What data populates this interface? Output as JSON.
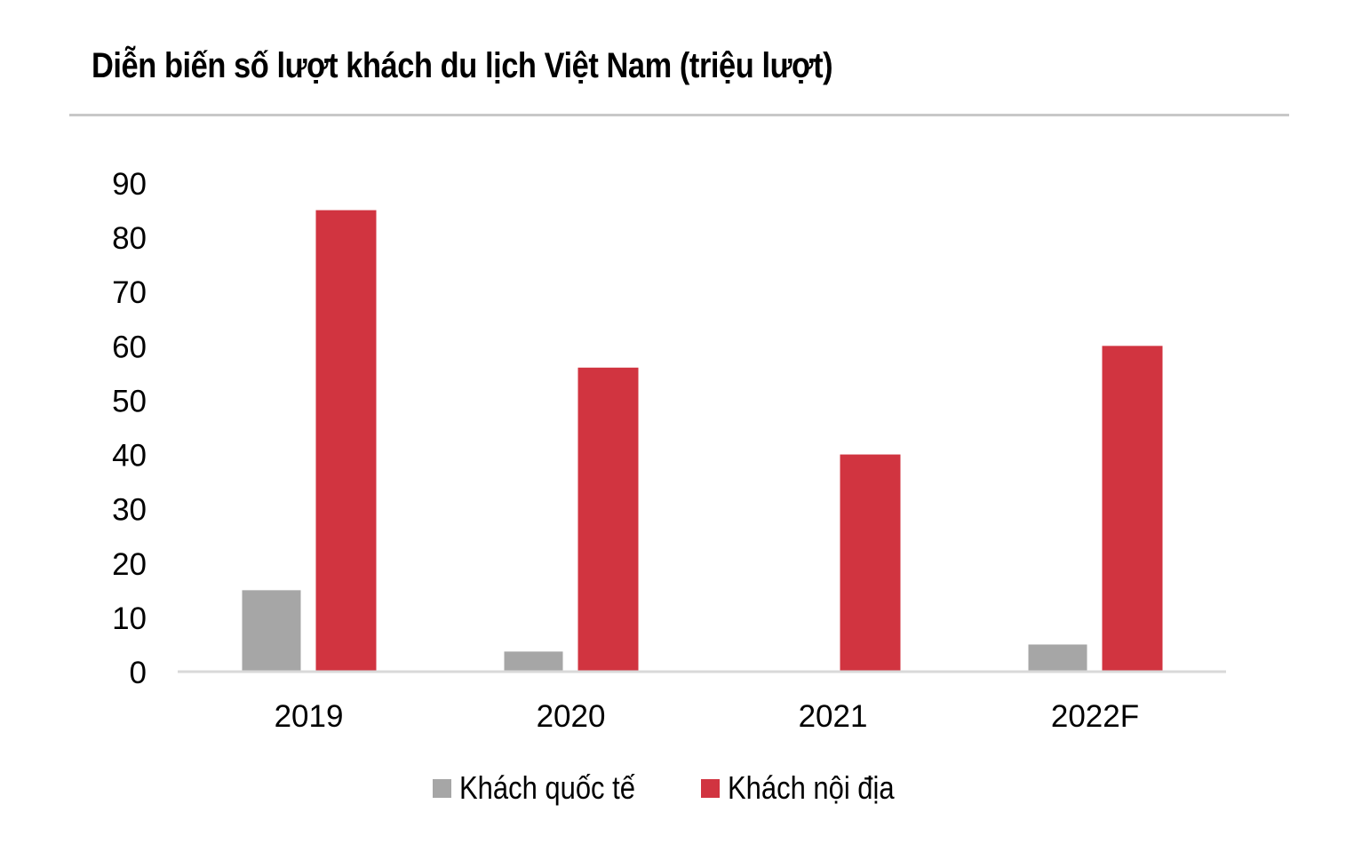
{
  "chart_data": {
    "type": "bar",
    "title": "Diễn biến số lượt khách du lịch Việt Nam (triệu lượt)",
    "categories": [
      "2019",
      "2020",
      "2021",
      "2022F"
    ],
    "series": [
      {
        "name": "Khách quốc tế",
        "color": "#a6a6a6",
        "values": [
          15,
          3.7,
          0,
          5
        ]
      },
      {
        "name": "Khách nội địa",
        "color": "#d13440",
        "values": [
          85,
          56,
          40,
          60
        ]
      }
    ],
    "ylim": [
      0,
      90
    ],
    "yticks": [
      0,
      10,
      20,
      30,
      40,
      50,
      60,
      70,
      80,
      90
    ],
    "xlabel": "",
    "ylabel": "",
    "grid": false,
    "legend_position": "bottom"
  }
}
